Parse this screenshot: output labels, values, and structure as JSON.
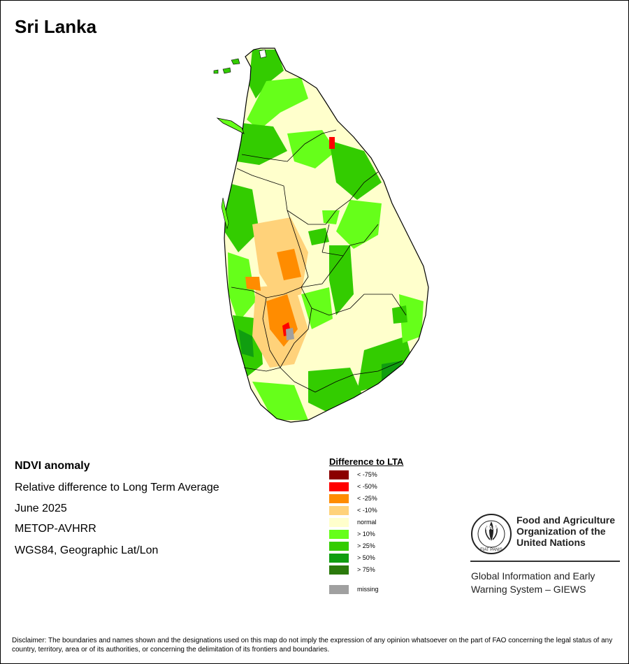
{
  "title": "Sri Lanka",
  "info": {
    "heading": "NDVI anomaly",
    "lines": [
      "Relative difference to Long Term Average",
      "June 2025",
      "METOP-AVHRR",
      "WGS84, Geographic Lat/Lon"
    ]
  },
  "legend": {
    "title": "Difference to LTA",
    "items": [
      {
        "label": "< -75%",
        "color": "#8b0000"
      },
      {
        "label": "< -50%",
        "color": "#ff0000"
      },
      {
        "label": "< -25%",
        "color": "#ff8c00"
      },
      {
        "label": "< -10%",
        "color": "#ffd27a"
      },
      {
        "label": "normal",
        "color": "#ffffcc"
      },
      {
        "label": "> 10%",
        "color": "#66ff1a"
      },
      {
        "label": "> 25%",
        "color": "#33cc00"
      },
      {
        "label": "> 50%",
        "color": "#109e10"
      },
      {
        "label": "> 75%",
        "color": "#2b7a0b"
      }
    ],
    "missing": {
      "label": "missing",
      "color": "#a0a0a0"
    }
  },
  "organization": {
    "logo_text": [
      "FAO",
      "FIAT PANIS"
    ],
    "name_lines": [
      "Food and Agriculture",
      "Organization of the",
      "United Nations"
    ],
    "system_lines": [
      "Global Information and Early",
      "Warning System – GIEWS"
    ]
  },
  "disclaimer": "Disclaimer: The boundaries and names shown and the designations used on this map do not imply the expression of any opinion whatsoever on the part of FAO concerning the legal status of any country, territory, area or of its authorities, or concerning the delimitation of its frontiers and boundaries."
}
